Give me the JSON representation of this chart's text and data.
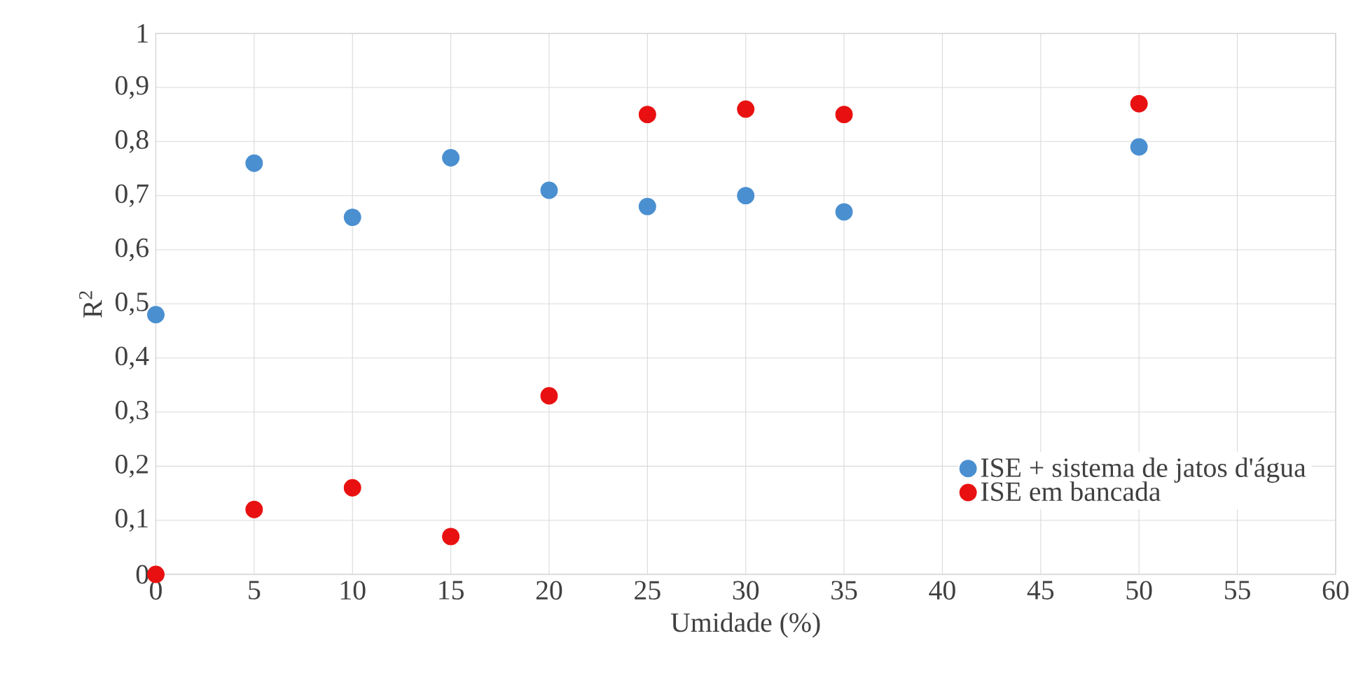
{
  "chart_data": {
    "type": "scatter",
    "xlabel": "Umidade (%)",
    "ylabel": "R$^{2}$",
    "xlim": [
      0,
      60
    ],
    "xticks": [
      0,
      5,
      10,
      15,
      20,
      25,
      30,
      35,
      40,
      45,
      50,
      55,
      60
    ],
    "ylim": [
      0,
      1
    ],
    "yticks": [
      0,
      {
        "value": 0.1,
        "label": "0,1"
      },
      {
        "value": 0.2,
        "label": "0,2"
      },
      {
        "value": 0.3,
        "label": "0,3"
      },
      {
        "value": 0.4,
        "label": "0,4"
      },
      {
        "value": 0.5,
        "label": "0,5"
      },
      {
        "value": 0.6,
        "label": "0,6"
      },
      {
        "value": 0.7,
        "label": "0,7"
      },
      {
        "value": 0.8,
        "label": "0,8"
      },
      {
        "value": 0.9,
        "label": "0,9"
      },
      1
    ],
    "grid": true,
    "legend": "bottom right",
    "marker": "circle",
    "series": [
      {
        "name": "ISE + sistema de jatos d'água",
        "color": "#4a8fd0",
        "x": [
          0,
          5,
          10,
          15,
          20,
          25,
          30,
          35,
          50
        ],
        "values": [
          0.48,
          0.76,
          0.66,
          0.77,
          0.71,
          0.68,
          0.7,
          0.67,
          0.79
        ]
      },
      {
        "name": "ISE em bancada",
        "color": "#e81010",
        "x": [
          0,
          5,
          10,
          15,
          20,
          25,
          30,
          35,
          50
        ],
        "values": [
          0.0,
          0.12,
          0.16,
          0.07,
          0.33,
          0.85,
          0.86,
          0.85,
          0.87
        ]
      }
    ]
  }
}
